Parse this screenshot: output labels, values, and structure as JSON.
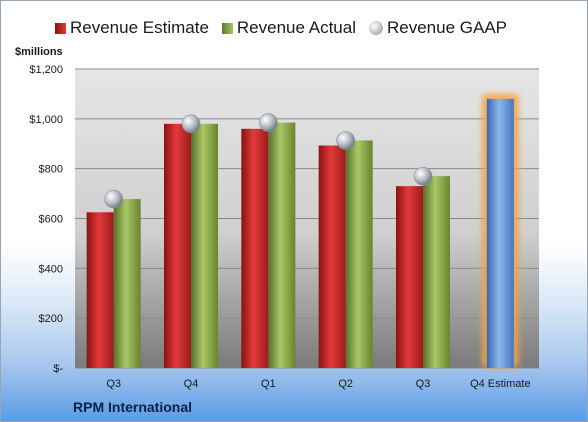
{
  "chart_data": {
    "type": "bar",
    "ylabel": "$millions",
    "company": "RPM International",
    "categories": [
      "Q3",
      "Q4",
      "Q1",
      "Q2",
      "Q3",
      "Q4 Estimate"
    ],
    "yticks": [
      "$-",
      "$200",
      "$400",
      "$600",
      "$800",
      "$1,000",
      "$1,200"
    ],
    "ylim": [
      0,
      1200
    ],
    "grid": true,
    "legend_position": "top",
    "series": [
      {
        "name": "Revenue Estimate",
        "kind": "bar",
        "color": "#c62828",
        "values": [
          625,
          980,
          960,
          893,
          730,
          null
        ]
      },
      {
        "name": "Revenue Actual",
        "kind": "bar",
        "color": "#7a9a3a",
        "values": [
          678,
          980,
          985,
          913,
          770,
          null
        ]
      },
      {
        "name": "Revenue GAAP",
        "kind": "marker",
        "color": "#b0b5bb",
        "values": [
          678,
          980,
          985,
          913,
          770,
          null
        ]
      },
      {
        "name": "Q4 Estimate",
        "kind": "bar",
        "color": "#5b8fd6",
        "highlight": "#f5a340",
        "values": [
          null,
          null,
          null,
          null,
          null,
          1080
        ]
      }
    ]
  }
}
